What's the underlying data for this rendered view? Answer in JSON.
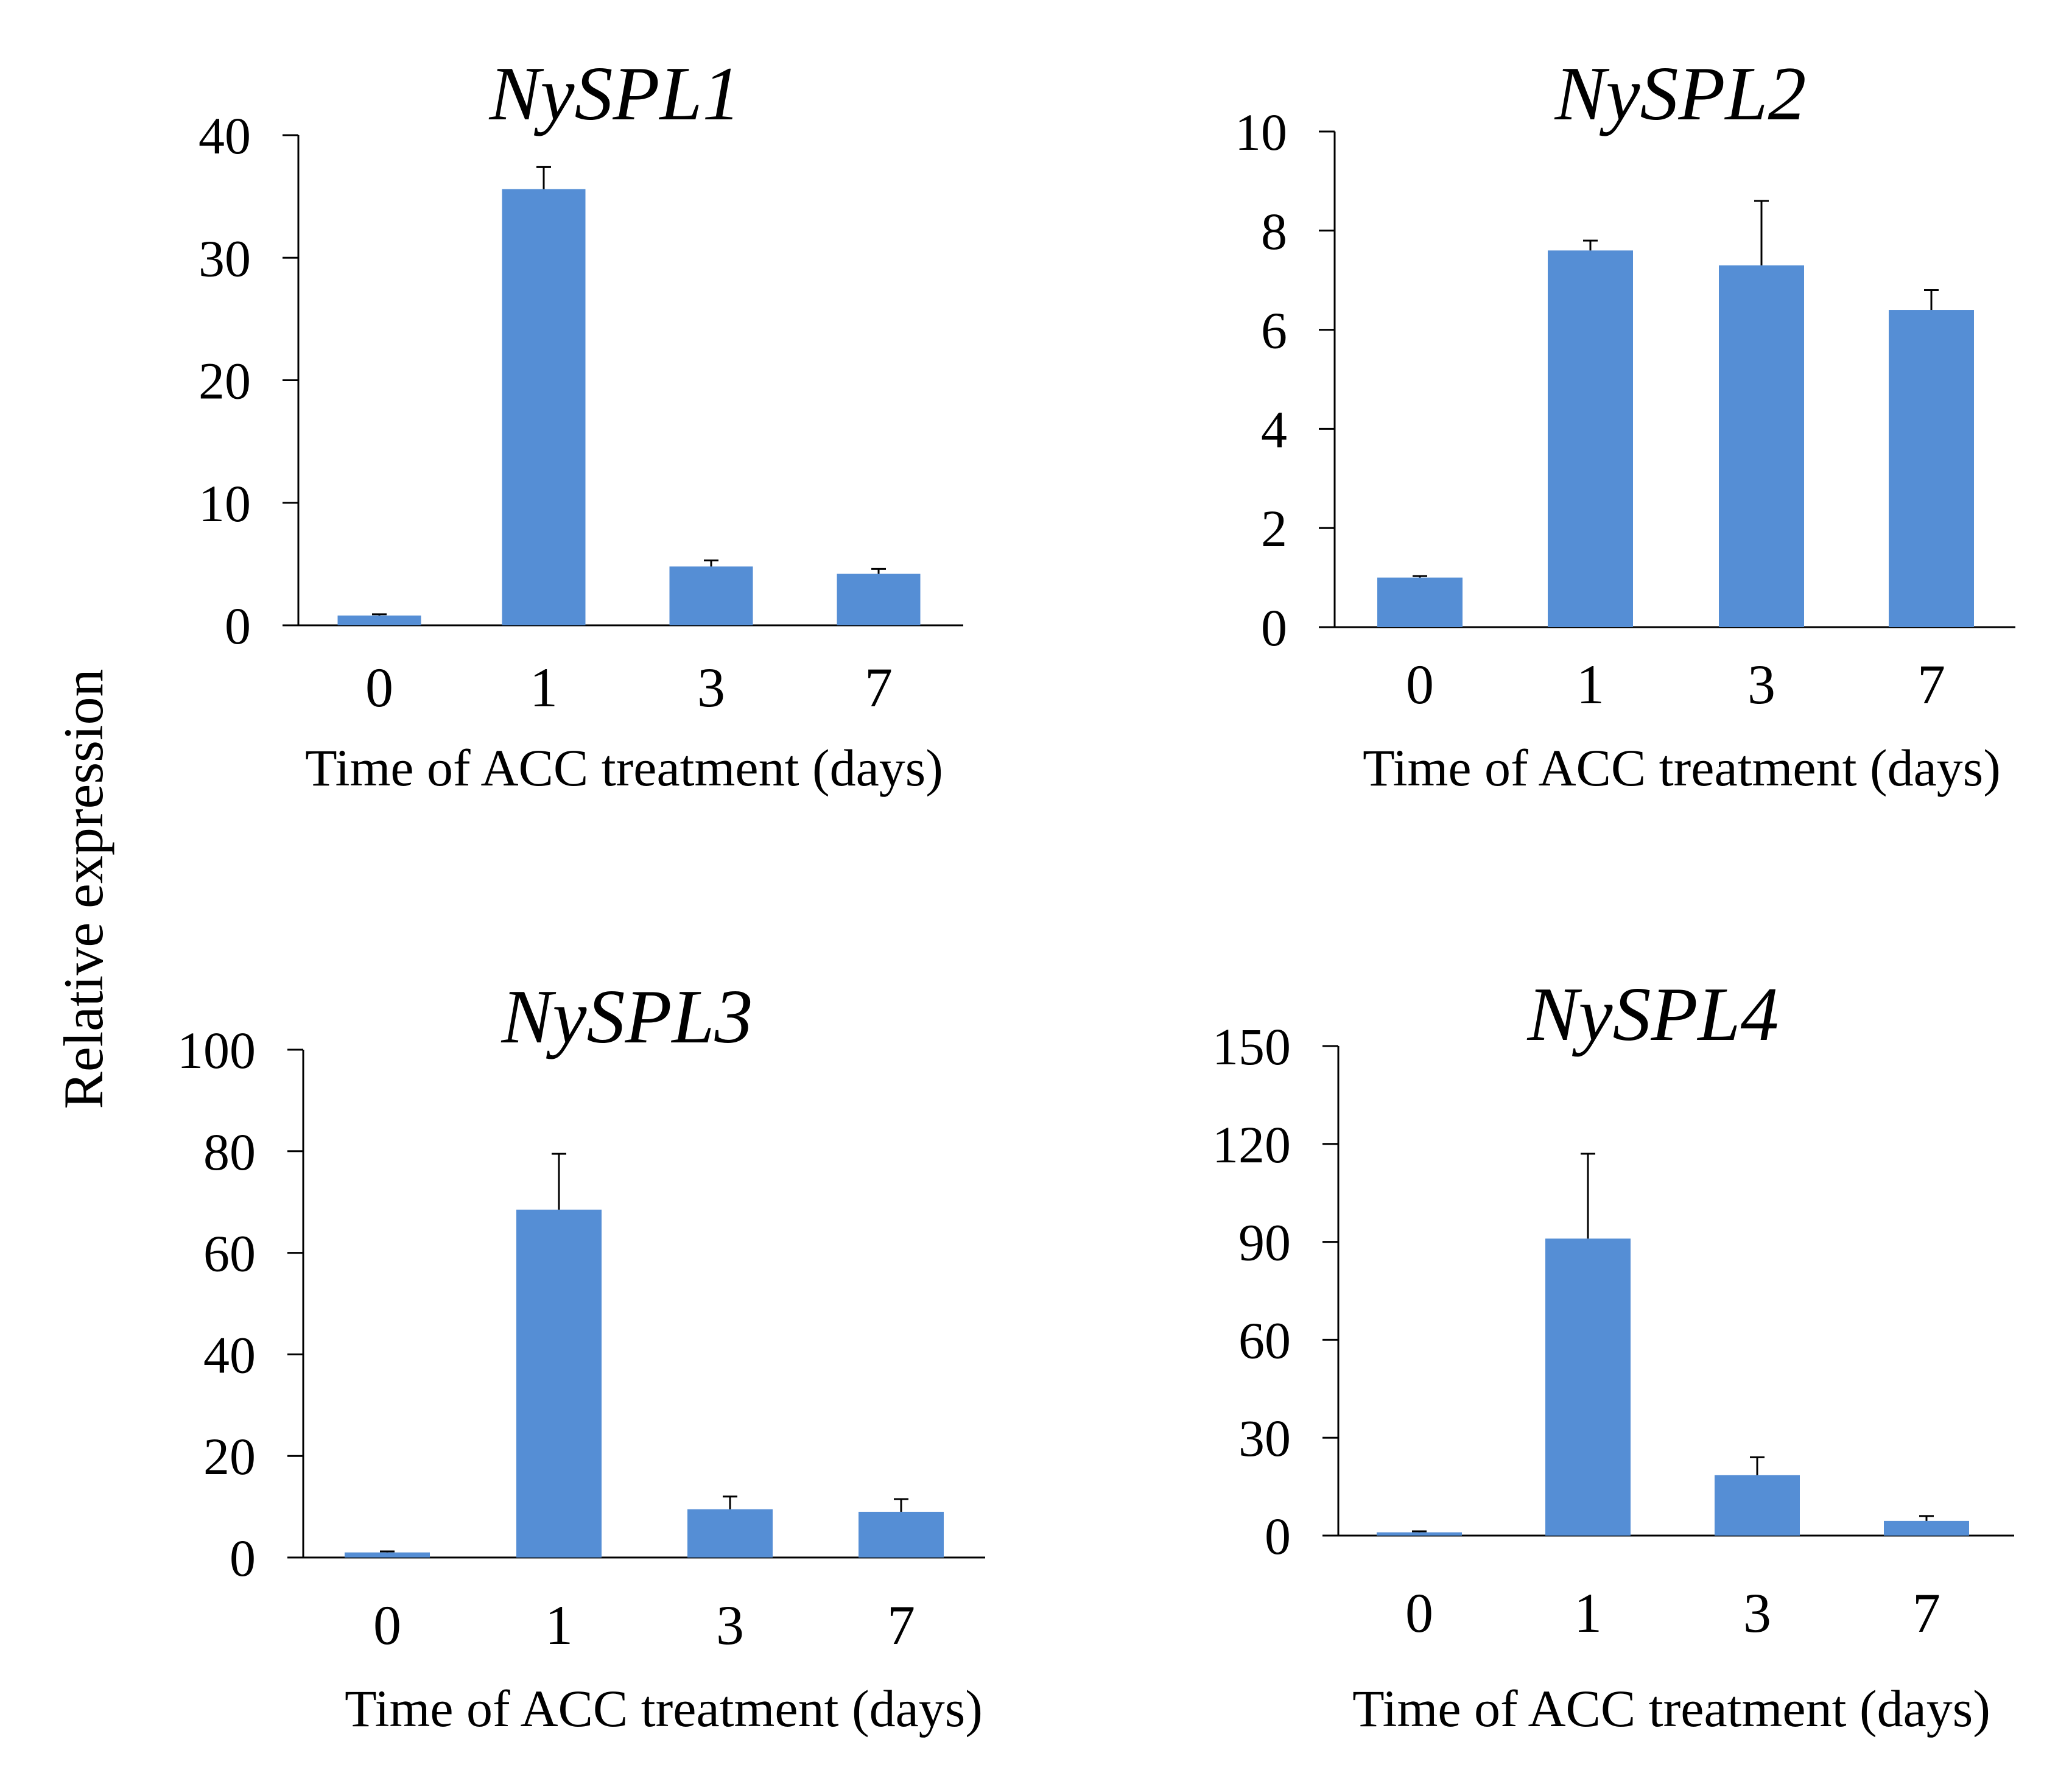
{
  "figure": {
    "ylabel": "Relative expression",
    "bar_color": "#558ED5"
  },
  "chart_data": [
    {
      "type": "bar",
      "title": "NySPL1",
      "xlabel": "Time of ACC treatment (days)",
      "ylabel": "Relative expression",
      "categories": [
        "0",
        "1",
        "3",
        "7"
      ],
      "values": [
        0.8,
        35.6,
        4.8,
        4.2
      ],
      "errors": [
        0.1,
        1.8,
        0.5,
        0.4
      ],
      "ylim": [
        0,
        40
      ],
      "yticks": [
        0,
        10,
        20,
        30,
        40
      ],
      "color": "#558ED5"
    },
    {
      "type": "bar",
      "title": "NySPL2",
      "xlabel": "Time of ACC treatment (days)",
      "ylabel": "Relative expression",
      "categories": [
        "0",
        "1",
        "3",
        "7"
      ],
      "values": [
        1.0,
        7.6,
        7.3,
        6.4
      ],
      "errors": [
        0.03,
        0.2,
        1.3,
        0.4
      ],
      "ylim": [
        0,
        10
      ],
      "yticks": [
        0,
        2,
        4,
        6,
        8,
        10
      ],
      "color": "#558ED5"
    },
    {
      "type": "bar",
      "title": "NySPL3",
      "xlabel": "Time of ACC treatment (days)",
      "ylabel": "Relative expression",
      "categories": [
        "0",
        "1",
        "3",
        "7"
      ],
      "values": [
        1.0,
        68.5,
        9.5,
        9.0
      ],
      "errors": [
        0.2,
        11.0,
        2.5,
        2.5
      ],
      "ylim": [
        0,
        100
      ],
      "yticks": [
        0,
        20,
        40,
        60,
        80,
        100
      ],
      "color": "#558ED5"
    },
    {
      "type": "bar",
      "title": "NySPL4",
      "xlabel": "Time of ACC treatment (days)",
      "ylabel": "Relative expression",
      "categories": [
        "0",
        "1",
        "3",
        "7"
      ],
      "values": [
        1.0,
        91.0,
        18.5,
        4.5
      ],
      "errors": [
        0.3,
        26.0,
        5.5,
        1.5
      ],
      "ylim": [
        0,
        150
      ],
      "yticks": [
        0,
        30,
        60,
        90,
        120,
        150
      ],
      "color": "#558ED5"
    }
  ]
}
